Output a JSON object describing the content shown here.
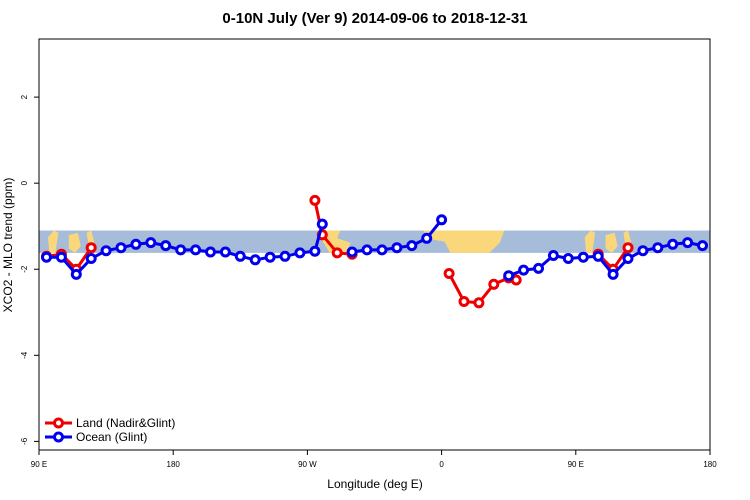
{
  "chart_data": {
    "type": "line",
    "title": "0-10N July (Ver 9)   2014-09-06 to 2018-12-31",
    "xlabel": "Longitude (deg E)",
    "ylabel": "XCO2 - MLO trend (ppm)",
    "xlim": [
      90,
      540
    ],
    "ylim": [
      -6.2,
      3.35
    ],
    "x_ticks": [
      {
        "value": 90,
        "label": "90 E"
      },
      {
        "value": 180,
        "label": "180"
      },
      {
        "value": 270,
        "label": "90 W"
      },
      {
        "value": 360,
        "label": "0"
      },
      {
        "value": 450,
        "label": "90 E"
      },
      {
        "value": 540,
        "label": "180"
      }
    ],
    "y_ticks": [
      {
        "value": -6,
        "label": "-6"
      },
      {
        "value": -4,
        "label": "-4"
      },
      {
        "value": -2,
        "label": "-2"
      },
      {
        "value": 0,
        "label": "0"
      },
      {
        "value": 2,
        "label": "2"
      }
    ],
    "map_band": {
      "ymin": -1.62,
      "ymax": -1.1,
      "ocean_color": "#a7bcd8",
      "land_color": "#fad77b"
    },
    "series": [
      {
        "name": "Land (Nadir&Glint)",
        "color": "#ee0000",
        "segments": [
          {
            "x": [
              95,
              105,
              115,
              125
            ],
            "y": [
              -1.7,
              -1.65,
              -2.0,
              -1.5
            ]
          },
          {
            "x": [
              275,
              280,
              290,
              300
            ],
            "y": [
              -0.4,
              -1.2,
              -1.62,
              -1.65
            ]
          },
          {
            "x": [
              365,
              375,
              385,
              395,
              405,
              410
            ],
            "y": [
              -2.1,
              -2.75,
              -2.78,
              -2.35,
              -2.2,
              -2.25
            ]
          },
          {
            "x": [
              465,
              475,
              485
            ],
            "y": [
              -1.65,
              -2.0,
              -1.5
            ]
          }
        ]
      },
      {
        "name": "Ocean (Glint)",
        "color": "#0000ee",
        "segments": [
          {
            "x": [
              95,
              105,
              115,
              125,
              135,
              145,
              155,
              165,
              175,
              185,
              195,
              205,
              215,
              225,
              235,
              245,
              255,
              265,
              275,
              280
            ],
            "y": [
              -1.72,
              -1.72,
              -2.12,
              -1.75,
              -1.57,
              -1.5,
              -1.42,
              -1.38,
              -1.45,
              -1.55,
              -1.55,
              -1.6,
              -1.6,
              -1.7,
              -1.78,
              -1.72,
              -1.7,
              -1.62,
              -1.58,
              -0.95
            ]
          },
          {
            "x": [
              300,
              310,
              320,
              330,
              340,
              350,
              360
            ],
            "y": [
              -1.6,
              -1.55,
              -1.55,
              -1.5,
              -1.45,
              -1.28,
              -0.85
            ]
          },
          {
            "x": [
              405,
              415,
              425,
              435,
              445,
              455,
              465,
              475,
              485,
              495,
              505,
              515,
              525,
              535
            ],
            "y": [
              -2.15,
              -2.02,
              -1.98,
              -1.68,
              -1.75,
              -1.72,
              -1.7,
              -2.12,
              -1.75,
              -1.57,
              -1.5,
              -1.42,
              -1.38,
              -1.45
            ]
          }
        ]
      }
    ],
    "legend_position": "bottom-left"
  }
}
